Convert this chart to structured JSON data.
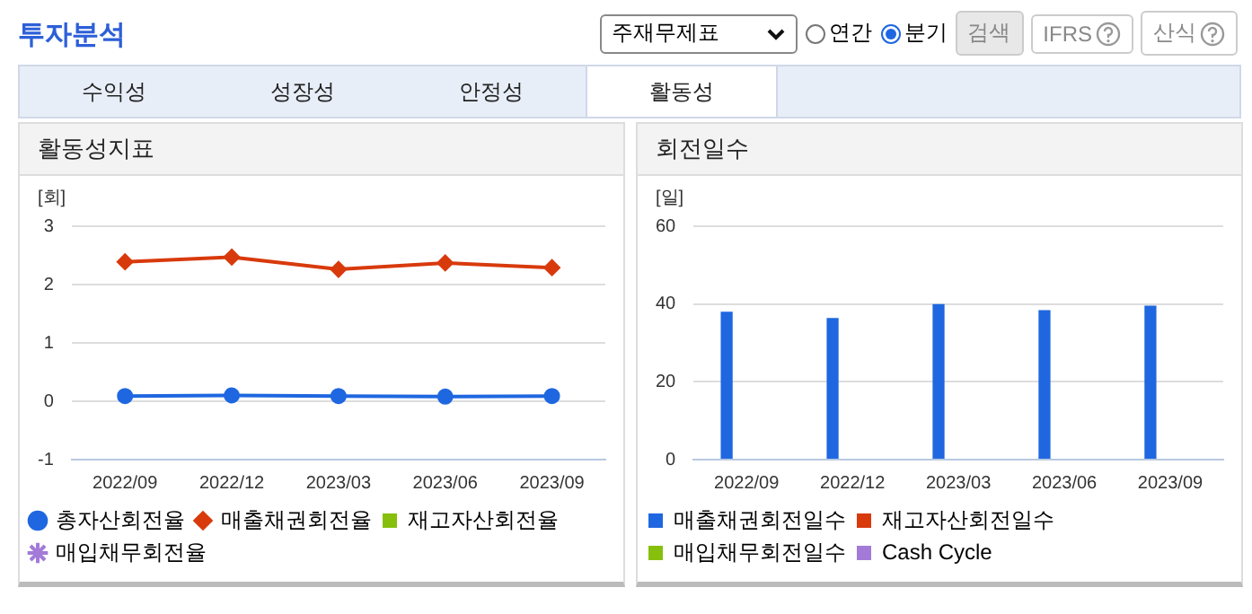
{
  "chart_data": [
    {
      "type": "other",
      "title": "투자분석",
      "annotations": [
        "주재무제표",
        "연간",
        "분기",
        "검색",
        "IFRS",
        "산식",
        "수익성",
        "성장성",
        "안정성",
        "활동성"
      ]
    },
    {
      "type": "line",
      "title": "활동성지표",
      "ylabel": "[회]",
      "categories": [
        "2022/09",
        "2022/12",
        "2023/03",
        "2023/06",
        "2023/09"
      ],
      "series": [
        {
          "name": "총자산회전율",
          "color": "#1f67e0",
          "marker": "circle",
          "values": [
            0.09,
            0.1,
            0.09,
            0.08,
            0.09
          ]
        },
        {
          "name": "매출채권회전율",
          "color": "#d83a0c",
          "marker": "diamond",
          "values": [
            2.39,
            2.47,
            2.26,
            2.37,
            2.29
          ]
        },
        {
          "name": "재고자산회전율",
          "color": "#86c00c",
          "marker": "square",
          "values": [
            null,
            null,
            null,
            null,
            null
          ]
        },
        {
          "name": "매입채무회전율",
          "color": "#a37ad8",
          "marker": "star",
          "values": [
            null,
            null,
            null,
            null,
            null
          ]
        }
      ],
      "ylim": [
        -1,
        3
      ],
      "yticks": [
        -1,
        0,
        1,
        2,
        3
      ],
      "grid": "y",
      "legend": "bottom",
      "line_style": "solid"
    },
    {
      "type": "bar",
      "title": "회전일수",
      "ylabel": "[일]",
      "categories": [
        "2022/09",
        "2022/12",
        "2023/03",
        "2023/06",
        "2023/09"
      ],
      "series": [
        {
          "name": "매출채권회전일수",
          "color": "#1f67e0",
          "values": [
            38.0,
            36.4,
            40.0,
            38.4,
            39.6
          ]
        },
        {
          "name": "재고자산회전일수",
          "color": "#d83a0c",
          "values": [
            null,
            null,
            null,
            null,
            null
          ]
        },
        {
          "name": "매입채무회전일수",
          "color": "#86c00c",
          "values": [
            null,
            null,
            null,
            null,
            null
          ]
        },
        {
          "name": "Cash Cycle",
          "color": "#a37ad8",
          "values": [
            null,
            null,
            null,
            null,
            null
          ]
        }
      ],
      "ylim": [
        0,
        60
      ],
      "yticks": [
        0,
        20,
        40,
        60
      ],
      "grid": "y",
      "legend": "bottom"
    }
  ]
}
